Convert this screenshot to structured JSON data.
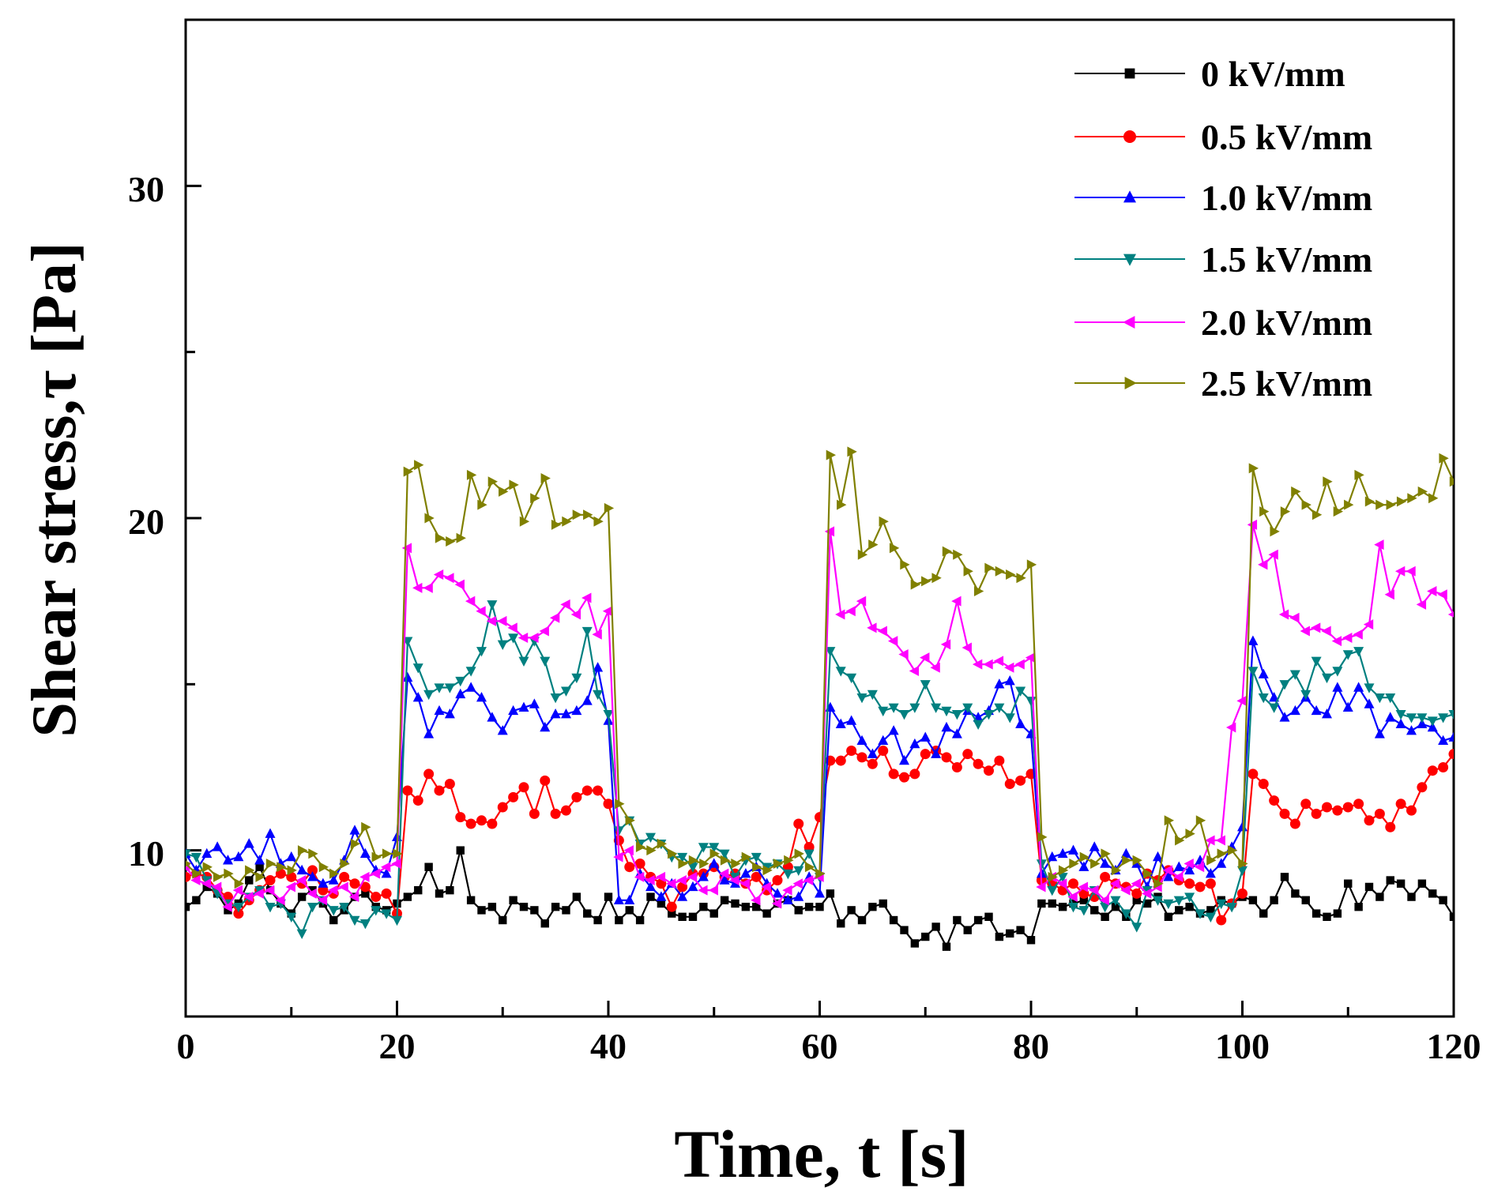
{
  "chart_data": {
    "type": "line",
    "title": "",
    "xlabel": "Time, t [s]",
    "ylabel": "Shear stress,τ [Pa]",
    "xlim": [
      0,
      120
    ],
    "ylim": [
      5,
      35
    ],
    "x_ticks": [
      "0",
      "20",
      "40",
      "60",
      "80",
      "100",
      "120"
    ],
    "y_ticks": [
      "10",
      "20",
      "30"
    ],
    "legend_position": "top-right",
    "x": [
      0,
      1,
      2,
      3,
      4,
      5,
      6,
      7,
      8,
      9,
      10,
      11,
      12,
      13,
      14,
      15,
      16,
      17,
      18,
      19,
      20,
      21,
      22,
      23,
      24,
      25,
      26,
      27,
      28,
      29,
      30,
      31,
      32,
      33,
      34,
      35,
      36,
      37,
      38,
      39,
      40,
      41,
      42,
      43,
      44,
      45,
      46,
      47,
      48,
      49,
      50,
      51,
      52,
      53,
      54,
      55,
      56,
      57,
      58,
      59,
      60,
      61,
      62,
      63,
      64,
      65,
      66,
      67,
      68,
      69,
      70,
      71,
      72,
      73,
      74,
      75,
      76,
      77,
      78,
      79,
      80,
      81,
      82,
      83,
      84,
      85,
      86,
      87,
      88,
      89,
      90,
      91,
      92,
      93,
      94,
      95,
      96,
      97,
      98,
      99,
      100,
      101,
      102,
      103,
      104,
      105,
      106,
      107,
      108,
      109,
      110,
      111,
      112,
      113,
      114,
      115,
      116,
      117,
      118,
      119,
      120
    ],
    "series": [
      {
        "name": "0 kV/mm",
        "color": "#000000",
        "marker": "square",
        "values": [
          8.3,
          8.5,
          8.9,
          8.7,
          8.2,
          8.4,
          9.1,
          9.5,
          8.8,
          8.4,
          8.1,
          8.6,
          8.8,
          8.4,
          7.9,
          8.2,
          8.6,
          8.7,
          8.3,
          8.2,
          8.4,
          8.6,
          8.8,
          9.5,
          8.7,
          8.8,
          10.0,
          8.5,
          8.2,
          8.3,
          7.9,
          8.5,
          8.3,
          8.2,
          7.8,
          8.3,
          8.2,
          8.6,
          8.1,
          7.9,
          8.6,
          7.9,
          8.2,
          7.9,
          8.6,
          8.4,
          8.1,
          8.0,
          8.0,
          8.3,
          8.1,
          8.5,
          8.4,
          8.3,
          8.3,
          8.1,
          8.4,
          8.5,
          8.2,
          8.3,
          8.3,
          8.7,
          7.8,
          8.2,
          7.9,
          8.3,
          8.4,
          7.9,
          7.6,
          7.2,
          7.4,
          7.7,
          7.1,
          7.9,
          7.6,
          7.9,
          8.0,
          7.4,
          7.5,
          7.6,
          7.3,
          8.4,
          8.4,
          8.3,
          8.4,
          8.5,
          8.2,
          8.0,
          8.3,
          8.0,
          8.5,
          8.4,
          8.6,
          8.0,
          8.2,
          8.3,
          8.1,
          8.2,
          8.5,
          8.4,
          8.6,
          8.5,
          8.1,
          8.5,
          9.2,
          8.7,
          8.5,
          8.1,
          8.0,
          8.1,
          9.0,
          8.3,
          8.9,
          8.6,
          9.1,
          9.0,
          8.6,
          9.0,
          8.7,
          8.5,
          8.0
        ]
      },
      {
        "name": "0.5 kV/mm",
        "color": "#ff0000",
        "marker": "circle",
        "values": [
          9.2,
          9.3,
          9.2,
          8.8,
          8.6,
          8.1,
          8.5,
          8.8,
          9.1,
          9.3,
          9.2,
          9.0,
          9.4,
          8.8,
          8.7,
          9.2,
          9.0,
          8.9,
          8.6,
          8.7,
          8.1,
          11.8,
          11.5,
          12.3,
          11.8,
          12.0,
          11.0,
          10.8,
          10.9,
          10.8,
          11.3,
          11.6,
          11.9,
          11.1,
          12.1,
          11.1,
          11.2,
          11.6,
          11.8,
          11.8,
          11.4,
          10.3,
          9.5,
          9.6,
          9.2,
          9.0,
          8.3,
          8.9,
          9.3,
          9.3,
          9.5,
          9.2,
          9.3,
          9.0,
          9.2,
          8.8,
          9.1,
          9.5,
          10.8,
          10.1,
          11.0,
          12.7,
          12.7,
          13.0,
          12.8,
          12.6,
          13.0,
          12.3,
          12.2,
          12.3,
          12.9,
          13.0,
          12.8,
          12.5,
          12.9,
          12.6,
          12.4,
          12.7,
          12.0,
          12.1,
          12.3,
          9.1,
          9.0,
          8.8,
          9.0,
          8.7,
          8.6,
          9.2,
          9.0,
          8.9,
          8.7,
          9.3,
          9.1,
          9.4,
          9.1,
          9.0,
          8.9,
          9.0,
          7.9,
          8.4,
          8.7,
          12.3,
          12.0,
          11.5,
          11.1,
          10.8,
          11.4,
          11.1,
          11.3,
          11.2,
          11.3,
          11.4,
          10.9,
          11.1,
          10.7,
          11.4,
          11.2,
          11.9,
          12.4,
          12.5,
          12.9
        ]
      },
      {
        "name": "1.0 kV/mm",
        "color": "#0000ff",
        "marker": "triangle-up",
        "values": [
          9.9,
          9.4,
          9.9,
          10.1,
          9.7,
          9.8,
          10.2,
          9.7,
          10.5,
          9.6,
          9.8,
          9.4,
          9.2,
          9.0,
          9.1,
          9.7,
          10.6,
          9.9,
          9.4,
          9.3,
          10.4,
          15.2,
          14.6,
          13.5,
          14.2,
          14.1,
          14.7,
          14.9,
          14.6,
          14.0,
          13.6,
          14.2,
          14.3,
          14.4,
          13.7,
          14.1,
          14.1,
          14.2,
          14.5,
          15.5,
          13.9,
          8.5,
          8.5,
          9.3,
          8.9,
          8.6,
          9.0,
          8.6,
          8.9,
          9.2,
          9.6,
          9.1,
          9.0,
          9.3,
          9.5,
          9.0,
          8.7,
          8.5,
          8.6,
          9.2,
          8.7,
          14.3,
          13.8,
          13.9,
          13.3,
          12.9,
          13.3,
          13.6,
          12.7,
          13.2,
          13.4,
          12.9,
          13.7,
          13.5,
          14.2,
          14.0,
          14.2,
          15.0,
          15.1,
          13.8,
          13.5,
          9.3,
          9.8,
          9.9,
          10.0,
          9.5,
          10.1,
          9.6,
          9.4,
          9.9,
          9.6,
          8.9,
          9.8,
          9.2,
          9.5,
          9.4,
          9.7,
          9.3,
          9.6,
          10.1,
          10.7,
          16.3,
          15.3,
          14.6,
          14.0,
          14.2,
          14.6,
          14.2,
          14.1,
          14.9,
          14.3,
          14.9,
          14.4,
          13.5,
          14.0,
          13.8,
          13.6,
          13.8,
          13.7,
          13.3,
          13.4
        ]
      },
      {
        "name": "1.5 kV/mm",
        "color": "#008080",
        "marker": "triangle-down",
        "values": [
          9.9,
          9.8,
          9.1,
          8.7,
          8.4,
          8.3,
          8.6,
          8.8,
          8.3,
          8.4,
          8.0,
          7.5,
          8.3,
          8.5,
          8.2,
          8.3,
          7.9,
          7.8,
          8.2,
          8.1,
          7.9,
          16.3,
          15.5,
          14.7,
          14.9,
          14.9,
          15.1,
          15.4,
          16.0,
          17.4,
          16.2,
          16.4,
          15.7,
          16.3,
          15.7,
          14.6,
          14.8,
          15.2,
          16.6,
          14.7,
          14.1,
          10.6,
          10.9,
          10.2,
          10.4,
          10.2,
          9.8,
          9.8,
          9.5,
          10.1,
          10.1,
          9.9,
          9.2,
          9.7,
          9.8,
          9.5,
          9.6,
          9.3,
          9.4,
          9.9,
          9.2,
          16.0,
          15.4,
          15.2,
          14.6,
          14.7,
          14.2,
          14.3,
          14.1,
          14.3,
          15.0,
          14.3,
          14.2,
          14.1,
          14.3,
          13.8,
          14.1,
          14.3,
          14.0,
          14.8,
          14.5,
          9.6,
          8.8,
          9.2,
          8.3,
          8.2,
          8.8,
          8.3,
          8.5,
          8.1,
          7.7,
          8.8,
          8.5,
          8.4,
          8.5,
          8.6,
          8.1,
          8.0,
          8.4,
          8.3,
          9.4,
          15.4,
          14.6,
          14.3,
          15.0,
          15.3,
          14.7,
          15.7,
          15.2,
          15.4,
          15.9,
          16.0,
          14.9,
          14.6,
          14.6,
          14.1,
          14.0,
          14.0,
          13.9,
          14.0,
          14.1
        ]
      },
      {
        "name": "2.0 kV/mm",
        "color": "#ff00ff",
        "marker": "triangle-left",
        "values": [
          9.5,
          9.1,
          9.0,
          8.9,
          8.3,
          8.8,
          8.6,
          8.7,
          8.8,
          8.5,
          8.9,
          9.1,
          8.7,
          8.5,
          8.8,
          8.9,
          8.6,
          9.2,
          9.3,
          9.5,
          9.6,
          19.1,
          17.9,
          17.9,
          18.3,
          18.2,
          18.0,
          17.5,
          17.2,
          16.9,
          16.9,
          16.7,
          16.4,
          16.4,
          16.6,
          17.0,
          17.4,
          17.1,
          17.6,
          16.5,
          17.2,
          9.8,
          10.0,
          9.2,
          9.1,
          9.2,
          9.0,
          9.1,
          9.2,
          8.8,
          8.8,
          9.3,
          9.1,
          9.0,
          8.5,
          8.9,
          8.4,
          8.8,
          9.0,
          9.1,
          9.2,
          19.6,
          17.1,
          17.2,
          17.5,
          16.7,
          16.6,
          16.3,
          15.9,
          15.4,
          15.8,
          15.5,
          16.2,
          17.5,
          16.1,
          15.6,
          15.6,
          15.7,
          15.5,
          15.6,
          15.8,
          8.9,
          9.2,
          9.0,
          8.6,
          8.9,
          8.8,
          8.5,
          9.0,
          8.8,
          9.0,
          8.7,
          8.9,
          9.4,
          9.2,
          9.6,
          9.5,
          10.3,
          10.3,
          13.7,
          14.5,
          19.8,
          18.6,
          18.9,
          17.1,
          17.0,
          16.6,
          16.7,
          16.6,
          16.3,
          16.4,
          16.5,
          16.8,
          19.2,
          17.7,
          18.4,
          18.4,
          17.4,
          17.8,
          17.7,
          17.1
        ]
      },
      {
        "name": "2.5 kV/mm",
        "color": "#808000",
        "marker": "triangle-right",
        "values": [
          9.6,
          9.3,
          9.5,
          9.2,
          9.3,
          9.0,
          9.4,
          9.2,
          9.6,
          9.5,
          9.4,
          10.0,
          9.9,
          9.5,
          9.3,
          9.6,
          10.2,
          10.7,
          9.8,
          9.9,
          9.9,
          21.4,
          21.6,
          20.0,
          19.4,
          19.3,
          19.4,
          21.3,
          20.4,
          21.1,
          20.8,
          21.0,
          19.9,
          20.6,
          21.2,
          19.8,
          19.9,
          20.1,
          20.1,
          19.9,
          20.3,
          11.4,
          10.9,
          10.1,
          10.0,
          10.2,
          9.9,
          9.6,
          9.7,
          9.6,
          9.9,
          9.7,
          9.6,
          9.8,
          9.5,
          9.4,
          9.6,
          9.7,
          9.9,
          9.5,
          9.3,
          21.9,
          20.4,
          22.0,
          18.9,
          19.2,
          19.9,
          19.1,
          18.6,
          18.0,
          18.1,
          18.2,
          19.0,
          18.9,
          18.4,
          17.8,
          18.5,
          18.4,
          18.3,
          18.2,
          18.6,
          10.4,
          9.2,
          9.4,
          9.6,
          9.8,
          9.6,
          9.9,
          9.4,
          9.7,
          9.7,
          9.3,
          9.0,
          10.9,
          10.3,
          10.5,
          10.9,
          9.7,
          9.9,
          10.0,
          9.6,
          21.5,
          20.2,
          19.6,
          20.2,
          20.8,
          20.4,
          20.1,
          21.1,
          20.2,
          20.4,
          21.3,
          20.5,
          20.4,
          20.4,
          20.5,
          20.6,
          20.8,
          20.6,
          21.8,
          21.1
        ]
      }
    ]
  }
}
